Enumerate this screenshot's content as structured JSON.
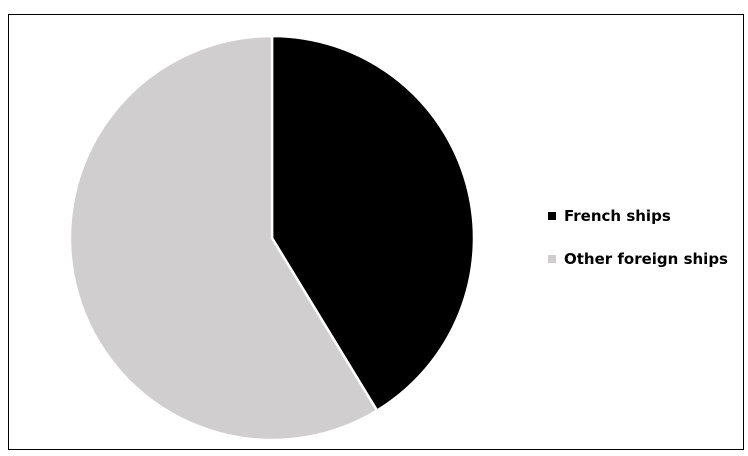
{
  "chart_data": {
    "type": "pie",
    "title": "",
    "series": [
      {
        "values": [
          41.3,
          58.7
        ]
      }
    ],
    "categories": [
      "French ships",
      "Other foreign ships"
    ],
    "colors": [
      "#000000",
      "#d0cece"
    ],
    "slice_border_color": "#ffffff",
    "start_angle_deg": 0,
    "direction": "clockwise",
    "legend": {
      "placement": "right",
      "items": [
        {
          "label": "French ships",
          "color": "#000000"
        },
        {
          "label": "Other foreign ships",
          "color": "#d0cece"
        }
      ]
    }
  }
}
